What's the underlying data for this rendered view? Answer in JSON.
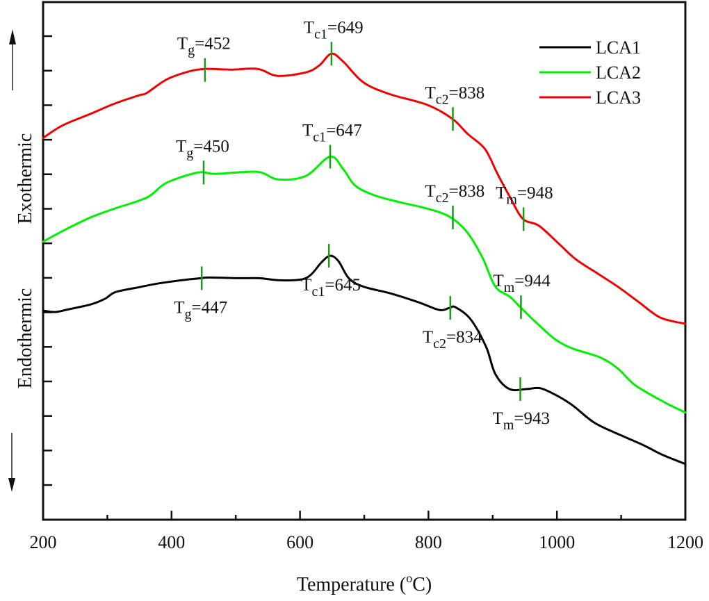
{
  "chart_data": {
    "type": "line",
    "title": "",
    "xlabel": "Temperature (°C)",
    "xlabel_parts": {
      "main": "Temperature (",
      "sup": "o",
      "unit": "C)"
    },
    "ylabel_up": "Exothermic",
    "ylabel_down": "Endothermic",
    "xlim": [
      200,
      1200
    ],
    "ylim": [
      0,
      14
    ],
    "x_major_ticks": [
      200,
      400,
      600,
      800,
      1000,
      1200
    ],
    "x_minor_ticks": [
      300,
      500,
      700,
      900,
      1100
    ],
    "x_tick_labels": [
      "200",
      "400",
      "600",
      "800",
      "1000",
      "1200"
    ],
    "y_ticks": [
      1,
      2,
      3,
      4,
      5,
      6,
      7,
      8,
      9,
      10,
      11,
      12,
      13,
      14
    ],
    "y_tick_labels_shown": false,
    "grid": false,
    "legend_position": "top-right",
    "legend": [
      {
        "name": "LCA1",
        "color": "#000000"
      },
      {
        "name": "LCA2",
        "color": "#00ee00"
      },
      {
        "name": "LCA3",
        "color": "#ee0000"
      }
    ],
    "marker_color": "#1a9a1a",
    "series": [
      {
        "name": "LCA1",
        "color": "#000000",
        "x": [
          200,
          219,
          240,
          274,
          296,
          313,
          350,
          377,
          415,
          446,
          459,
          503,
          536,
          568,
          601,
          617,
          633,
          647,
          660,
          676,
          698,
          741,
          785,
          817,
          833,
          842,
          866,
          890,
          904,
          926,
          953,
          975,
          1003,
          1025,
          1057,
          1090,
          1133,
          1165,
          1203
        ],
        "y": [
          6.05,
          6.01,
          6.09,
          6.23,
          6.39,
          6.59,
          6.73,
          6.83,
          6.93,
          6.99,
          7.01,
          6.99,
          6.99,
          6.93,
          6.95,
          7.09,
          7.44,
          7.64,
          7.48,
          6.99,
          6.75,
          6.55,
          6.29,
          6.07,
          6.13,
          6.15,
          5.79,
          4.99,
          4.22,
          3.78,
          3.78,
          3.8,
          3.56,
          3.3,
          2.82,
          2.52,
          2.17,
          1.87,
          1.61
        ]
      },
      {
        "name": "LCA2",
        "color": "#00ee00",
        "x": [
          200,
          236,
          274,
          312,
          362,
          392,
          441,
          468,
          533,
          566,
          609,
          647,
          668,
          686,
          716,
          760,
          793,
          831,
          859,
          884,
          904,
          927,
          943,
          971,
          998,
          1025,
          1068,
          1095,
          1122,
          1166,
          1203
        ],
        "y": [
          8.05,
          8.41,
          8.75,
          9.01,
          9.33,
          9.75,
          10.05,
          10.01,
          10.07,
          9.85,
          9.95,
          10.51,
          10.13,
          9.67,
          9.39,
          9.17,
          9.03,
          8.79,
          8.35,
          7.59,
          6.75,
          6.45,
          6.15,
          5.65,
          5.21,
          4.95,
          4.69,
          4.37,
          3.89,
          3.41,
          3.1
        ]
      },
      {
        "name": "LCA3",
        "color": "#ee0000",
        "x": [
          200,
          230,
          274,
          312,
          350,
          361,
          393,
          426,
          452,
          492,
          534,
          565,
          609,
          630,
          649,
          668,
          698,
          738,
          798,
          837,
          861,
          888,
          907,
          926,
          947,
          972,
          1004,
          1030,
          1063,
          1096,
          1128,
          1161,
          1203
        ],
        "y": [
          11.05,
          11.41,
          11.75,
          12.05,
          12.29,
          12.35,
          12.75,
          12.97,
          13.05,
          13.03,
          13.05,
          12.85,
          12.95,
          13.15,
          13.49,
          13.25,
          12.67,
          12.33,
          12.01,
          11.61,
          11.17,
          10.73,
          10.03,
          9.37,
          8.71,
          8.51,
          7.97,
          7.53,
          7.13,
          6.73,
          6.29,
          5.85,
          5.67
        ]
      }
    ],
    "annotations": [
      {
        "series": "LCA3",
        "symbol": "T",
        "sub": "g",
        "value": "452",
        "x": 452,
        "y": 13.02,
        "label_pos": "above"
      },
      {
        "series": "LCA3",
        "symbol": "T",
        "sub": "c1",
        "value": "649",
        "x": 649,
        "y": 13.49,
        "label_pos": "above"
      },
      {
        "series": "LCA3",
        "symbol": "T",
        "sub": "c2",
        "value": "838",
        "x": 838,
        "y": 11.6,
        "label_pos": "above"
      },
      {
        "series": "LCA3",
        "symbol": "T",
        "sub": "m",
        "value": "948",
        "x": 948,
        "y": 8.7,
        "label_pos": "above"
      },
      {
        "series": "LCA2",
        "symbol": "T",
        "sub": "g",
        "value": "450",
        "x": 450,
        "y": 10.05,
        "label_pos": "above"
      },
      {
        "series": "LCA2",
        "symbol": "T",
        "sub": "c1",
        "value": "647",
        "x": 647,
        "y": 10.51,
        "label_pos": "above"
      },
      {
        "series": "LCA2",
        "symbol": "T",
        "sub": "c2",
        "value": "838",
        "x": 838,
        "y": 8.75,
        "label_pos": "above"
      },
      {
        "series": "LCA2",
        "symbol": "T",
        "sub": "m",
        "value": "944",
        "x": 944,
        "y": 6.15,
        "label_pos": "above"
      },
      {
        "series": "LCA1",
        "symbol": "T",
        "sub": "g",
        "value": "447",
        "x": 447,
        "y": 6.99,
        "label_pos": "below"
      },
      {
        "series": "LCA1",
        "symbol": "T",
        "sub": "c1",
        "value": "645",
        "x": 645,
        "y": 7.64,
        "label_pos": "below"
      },
      {
        "series": "LCA1",
        "symbol": "T",
        "sub": "c2",
        "value": "834",
        "x": 834,
        "y": 6.13,
        "label_pos": "below"
      },
      {
        "series": "LCA1",
        "symbol": "T",
        "sub": "m",
        "value": "943",
        "x": 943,
        "y": 3.78,
        "label_pos": "below"
      }
    ]
  }
}
